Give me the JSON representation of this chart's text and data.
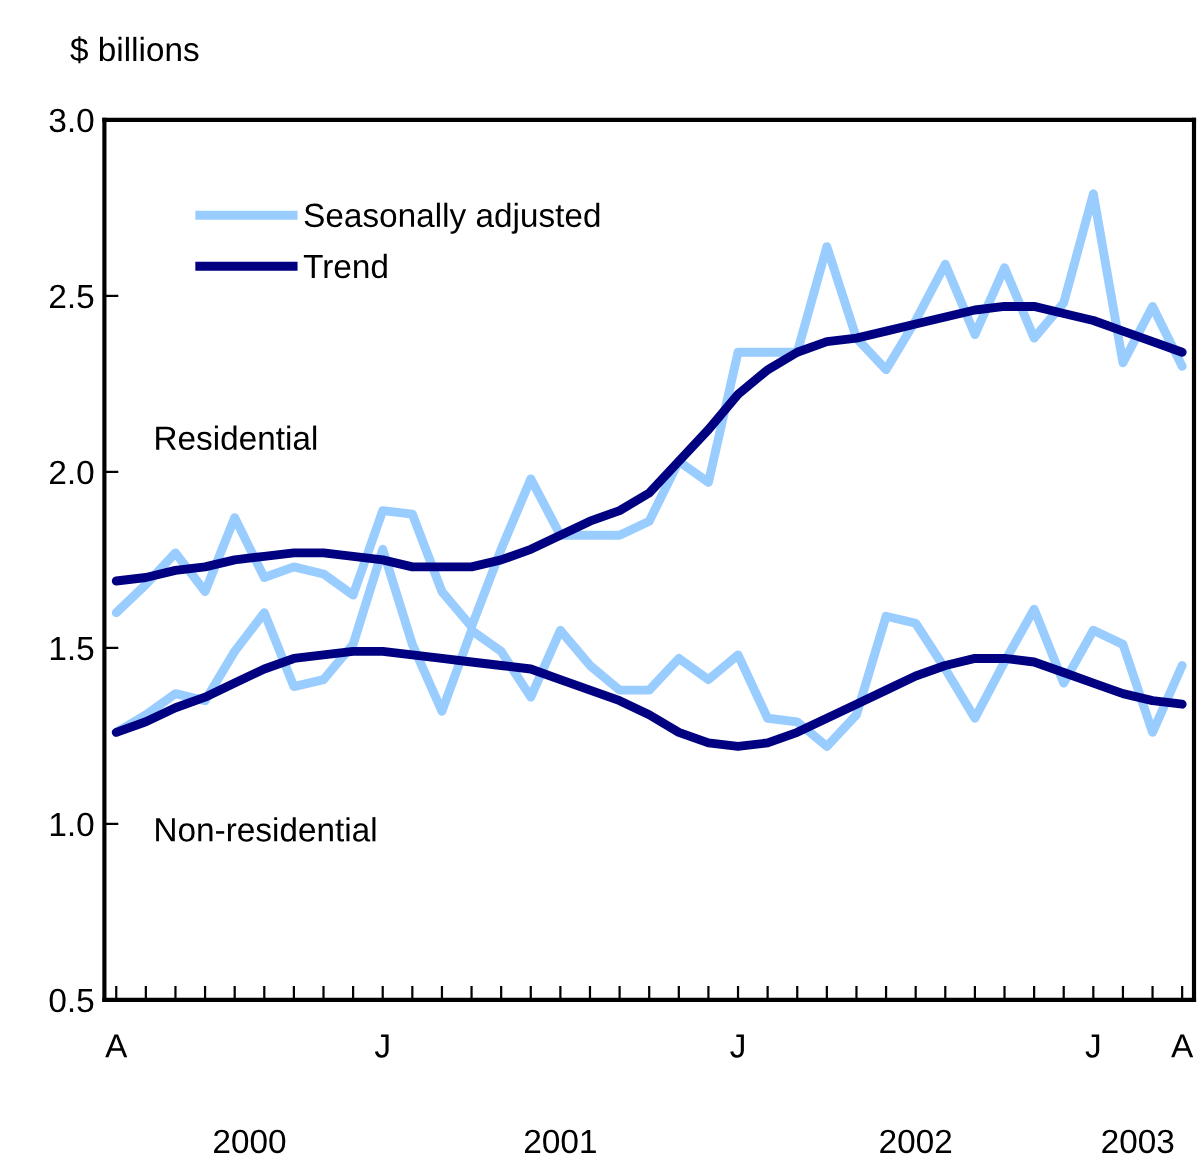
{
  "chart_data": {
    "type": "line",
    "ylabel": "$ billions",
    "categories": [
      "A",
      null,
      null,
      null,
      null,
      null,
      null,
      null,
      null,
      "J",
      null,
      null,
      null,
      null,
      null,
      null,
      null,
      null,
      null,
      null,
      null,
      "J",
      null,
      null,
      null,
      null,
      null,
      null,
      null,
      null,
      null,
      null,
      null,
      "J",
      null,
      null,
      "A"
    ],
    "ylim": [
      0.5,
      3.0
    ],
    "yticks": [
      {
        "value": 0.5,
        "label": "0.5"
      },
      {
        "value": 1.0,
        "label": "1.0"
      },
      {
        "value": 1.5,
        "label": "1.5"
      },
      {
        "value": 2.0,
        "label": "2.0"
      },
      {
        "value": 2.5,
        "label": "2.5"
      },
      {
        "value": 3.0,
        "label": "3.0"
      }
    ],
    "series": [
      {
        "name": "Seasonally adjusted",
        "color": "#99ccff",
        "values": [
          1.6,
          1.68,
          1.77,
          1.66,
          1.87,
          1.7,
          1.73,
          1.71,
          1.65,
          1.89,
          1.88,
          1.66,
          1.56,
          1.78,
          1.98,
          1.82,
          1.82,
          1.82,
          1.86,
          2.03,
          1.97,
          2.34,
          2.34,
          2.34,
          2.64,
          2.38,
          2.29,
          2.43,
          2.59,
          2.39,
          2.58,
          2.38,
          2.48,
          2.79,
          2.31,
          2.47,
          2.3
        ]
      },
      {
        "color": "#99ccff",
        "values": [
          1.26,
          1.31,
          1.37,
          1.35,
          1.49,
          1.6,
          1.39,
          1.41,
          1.51,
          1.78,
          1.51,
          1.32,
          1.55,
          1.49,
          1.36,
          1.55,
          1.45,
          1.38,
          1.38,
          1.47,
          1.41,
          1.48,
          1.3,
          1.29,
          1.22,
          1.31,
          1.59,
          1.57,
          1.44,
          1.3,
          1.46,
          1.61,
          1.4,
          1.55,
          1.51,
          1.26,
          1.45
        ]
      },
      {
        "name": "Trend",
        "color": "#000080",
        "values": [
          1.69,
          1.7,
          1.72,
          1.73,
          1.75,
          1.76,
          1.77,
          1.77,
          1.76,
          1.75,
          1.73,
          1.73,
          1.73,
          1.75,
          1.78,
          1.82,
          1.86,
          1.89,
          1.94,
          2.03,
          2.12,
          2.22,
          2.29,
          2.34,
          2.37,
          2.38,
          2.4,
          2.42,
          2.44,
          2.46,
          2.47,
          2.47,
          2.45,
          2.43,
          2.4,
          2.37,
          2.34
        ]
      },
      {
        "color": "#000080",
        "values": [
          1.26,
          1.29,
          1.33,
          1.36,
          1.4,
          1.44,
          1.47,
          1.48,
          1.49,
          1.49,
          1.48,
          1.47,
          1.46,
          1.45,
          1.44,
          1.41,
          1.38,
          1.35,
          1.31,
          1.26,
          1.23,
          1.22,
          1.23,
          1.26,
          1.3,
          1.34,
          1.38,
          1.42,
          1.45,
          1.47,
          1.47,
          1.46,
          1.43,
          1.4,
          1.37,
          1.35,
          1.34
        ]
      }
    ],
    "annotations": [
      "Residential",
      "Non-residential",
      "2000",
      "2001",
      "2002",
      "2003"
    ],
    "legend": "top left",
    "grid": false,
    "line_style": "solid",
    "marker": "none"
  }
}
